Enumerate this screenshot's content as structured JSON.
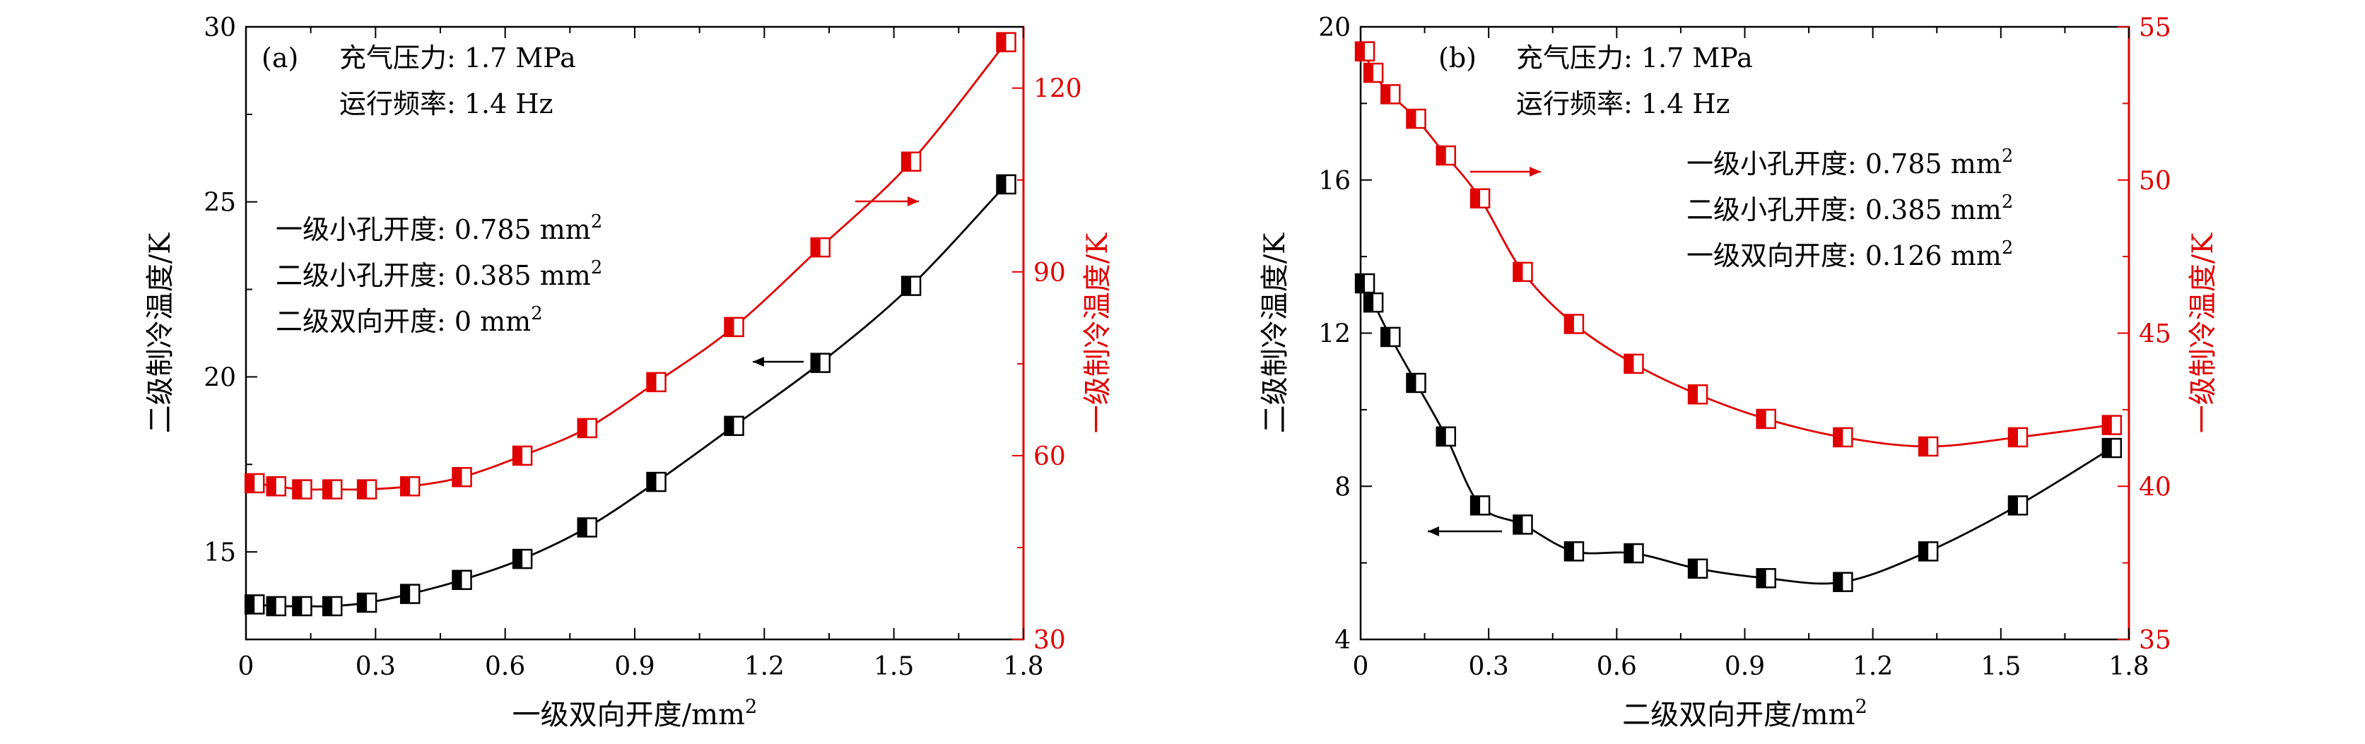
{
  "colors": {
    "left_axis": "#000000",
    "right_axis": "#e00000"
  },
  "chart_data": [
    {
      "type": "line",
      "panel_label": "(a)",
      "xlabel": "一级双向开度/mm²",
      "ylabel_left": "二级制冷温度/K",
      "ylabel_right": "一级制冷温度/K",
      "xlim": [
        0,
        1.8
      ],
      "ylim_left": [
        12.5,
        30
      ],
      "ylim_right": [
        30,
        130
      ],
      "xticks": [
        "0",
        "0.3",
        "0.6",
        "0.9",
        "1.2",
        "1.5",
        "1.8"
      ],
      "yticks_left": [
        "15",
        "20",
        "25",
        "30"
      ],
      "yticks_right": [
        "30",
        "60",
        "90",
        "120"
      ],
      "annotations": [
        "充气压力: 1.7 MPa",
        "运行频率: 1.4 Hz"
      ],
      "conditions": [
        "一级小孔开度: 0.785 mm²",
        "二级小孔开度: 0.385 mm²",
        "二级双向开度: 0 mm²"
      ],
      "series": [
        {
          "axis": "left",
          "marker": "half-filled-square",
          "x": [
            0.02,
            0.07,
            0.13,
            0.2,
            0.28,
            0.38,
            0.5,
            0.64,
            0.79,
            0.95,
            1.13,
            1.33,
            1.54,
            1.76
          ],
          "y": [
            13.5,
            13.45,
            13.45,
            13.45,
            13.55,
            13.8,
            14.2,
            14.8,
            15.7,
            17.0,
            18.6,
            20.4,
            22.6,
            25.5
          ]
        },
        {
          "axis": "right",
          "marker": "half-filled-square",
          "x": [
            0.02,
            0.07,
            0.13,
            0.2,
            0.28,
            0.38,
            0.5,
            0.64,
            0.79,
            0.95,
            1.13,
            1.33,
            1.54,
            1.76
          ],
          "y": [
            55.5,
            55,
            54.5,
            54.5,
            54.5,
            55,
            56.5,
            60,
            64.5,
            72,
            81,
            94,
            108,
            127.5
          ]
        }
      ]
    },
    {
      "type": "line",
      "panel_label": "(b)",
      "xlabel": "二级双向开度/mm²",
      "ylabel_left": "二级制冷温度/K",
      "ylabel_right": "一级制冷温度/K",
      "xlim": [
        0,
        1.8
      ],
      "ylim_left": [
        4,
        20
      ],
      "ylim_right": [
        35,
        55
      ],
      "xticks": [
        "0",
        "0.3",
        "0.6",
        "0.9",
        "1.2",
        "1.5",
        "1.8"
      ],
      "yticks_left": [
        "4",
        "8",
        "12",
        "16",
        "20"
      ],
      "yticks_right": [
        "35",
        "40",
        "45",
        "50",
        "55"
      ],
      "annotations": [
        "充气压力: 1.7 MPa",
        "运行频率: 1.4 Hz"
      ],
      "conditions": [
        "一级小孔开度: 0.785 mm²",
        "二级小孔开度: 0.385 mm²",
        "一级双向开度: 0.126 mm²"
      ],
      "series": [
        {
          "axis": "left",
          "marker": "half-filled-square",
          "x": [
            0.01,
            0.03,
            0.07,
            0.13,
            0.2,
            0.28,
            0.38,
            0.5,
            0.64,
            0.79,
            0.95,
            1.13,
            1.33,
            1.54,
            1.76
          ],
          "y": [
            13.3,
            12.8,
            11.9,
            10.7,
            9.3,
            7.5,
            7.0,
            6.3,
            6.25,
            5.85,
            5.6,
            5.5,
            6.3,
            7.5,
            9.0
          ]
        },
        {
          "axis": "right",
          "marker": "half-filled-square",
          "x": [
            0.01,
            0.03,
            0.07,
            0.13,
            0.2,
            0.28,
            0.38,
            0.5,
            0.64,
            0.79,
            0.95,
            1.13,
            1.33,
            1.54,
            1.76
          ],
          "y": [
            54.2,
            53.5,
            52.8,
            52.0,
            50.8,
            49.4,
            47.0,
            45.3,
            44.0,
            43.0,
            42.2,
            41.6,
            41.3,
            41.6,
            42.0
          ]
        }
      ]
    }
  ]
}
